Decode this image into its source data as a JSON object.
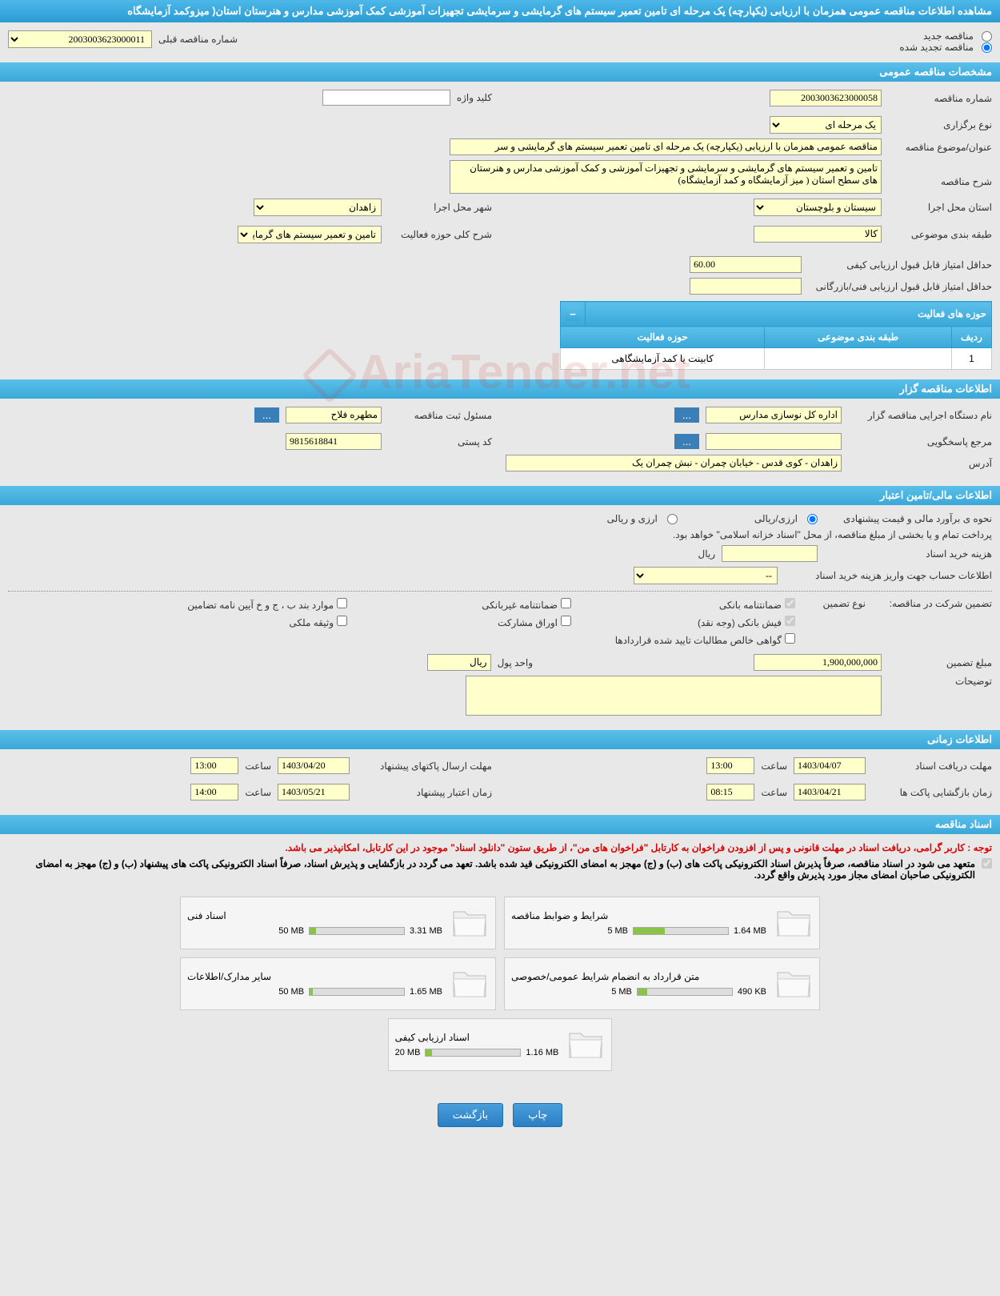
{
  "header": {
    "title": "مشاهده اطلاعات مناقصه عمومی همزمان با ارزیابی (یکپارچه) یک مرحله ای تامین تعمیر سیستم های گرمایشی و سرمایشی تجهیزات آموزشی کمک آموزشی مدارس و هنرستان استان( میزوکمد آزمایشگاه"
  },
  "top": {
    "new_tender": "مناقصه جدید",
    "renewed_tender": "مناقصه تجدید شده",
    "prev_tender_label": "شماره مناقصه قبلی",
    "prev_tender_value": "2003003623000011"
  },
  "section_general": "مشخصات مناقصه عمومی",
  "general": {
    "tender_no_label": "شماره مناقصه",
    "tender_no": "2003003623000058",
    "keyword_label": "کلید واژه",
    "keyword": "",
    "type_label": "نوع برگزاری",
    "type": "یک مرحله ای",
    "subject_label": "عنوان/موضوع مناقصه",
    "subject": "مناقصه عمومی همزمان با ارزیابی (یکپارچه) یک مرحله ای تامین تعمیر سیستم های گرمایشی و سر",
    "desc_label": "شرح مناقصه",
    "desc": "تامین و تعمیر سیستم های گرمایشی و سرمایشی و تجهیزات آموزشی و کمک آموزشی مدارس و هنرستان های سطح استان ( میز آزمایشگاه و کمد آزمایشگاه)",
    "province_label": "استان محل اجرا",
    "province": "سیستان و بلوچستان",
    "city_label": "شهر محل اجرا",
    "city": "زاهدان",
    "category_label": "طبقه بندی موضوعی",
    "category": "کالا",
    "activity_desc_label": "شرح کلی حوزه فعالیت",
    "activity_desc": "تامین و تعمیر سیستم های گرمایشی و",
    "min_quality_label": "حداقل امتیاز قابل قبول ارزیابی کیفی",
    "min_quality": "60.00",
    "min_tech_label": "حداقل امتیاز قابل قبول ارزیابی فنی/بازرگانی",
    "min_tech": ""
  },
  "activity_table": {
    "title": "حوزه های فعالیت",
    "col_row": "ردیف",
    "col_category": "طبقه بندی موضوعی",
    "col_activity": "حوزه فعالیت",
    "rows": [
      {
        "n": "1",
        "category": "",
        "activity": "کابینت یا کمد آزمایشگاهی"
      }
    ]
  },
  "section_org": "اطلاعات مناقصه گزار",
  "org": {
    "name_label": "نام دستگاه اجرایی مناقصه گزار",
    "name": "اداره کل نوسازی مدارس",
    "responsible_label": "مسئول ثبت مناقصه",
    "responsible": "مطهره فلاح",
    "contact_label": "مرجع پاسخگویی",
    "contact": "",
    "postal_label": "کد پستی",
    "postal": "9815618841",
    "address_label": "آدرس",
    "address": "زاهدان - کوی قدس - خیابان چمران - نبش چمران یک"
  },
  "section_financial": "اطلاعات مالی/تامین اعتبار",
  "financial": {
    "estimate_label": "نحوه ی برآورد مالی و قیمت پیشنهادی",
    "opt_rial": "ارزی/ریالی",
    "opt_both": "ارزی و ریالی",
    "payment_note": "پرداخت تمام و یا بخشی از مبلغ مناقصه، از محل \"اسناد خزانه اسلامی\" خواهد بود.",
    "purchase_cost_label": "هزینه خرید اسناد",
    "purchase_cost": "",
    "currency": "ریال",
    "account_label": "اطلاعات حساب جهت واریز هزینه خرید اسناد",
    "account": "--",
    "guarantee_label": "تضمین شرکت در مناقصه:",
    "guarantee_type_label": "نوع تضمین",
    "g1": "ضمانتنامه بانکی",
    "g2": "ضمانتنامه غیربانکی",
    "g3": "موارد بند ب ، ج و خ آیین نامه تضامین",
    "g4": "فیش بانکی (وجه نقد)",
    "g5": "اوراق مشارکت",
    "g6": "وثیقه ملکی",
    "g7": "گواهی خالص مطالبات تایید شده قراردادها",
    "amount_label": "مبلغ تضمین",
    "amount": "1,900,000,000",
    "unit_label": "واحد پول",
    "unit": "ریال",
    "notes_label": "توضیحات",
    "notes": ""
  },
  "section_time": "اطلاعات زمانی",
  "time": {
    "receive_label": "مهلت دریافت اسناد",
    "receive_date": "1403/04/07",
    "receive_time_label": "ساعت",
    "receive_time": "13:00",
    "send_label": "مهلت ارسال پاکتهای پیشنهاد",
    "send_date": "1403/04/20",
    "send_time_label": "ساعت",
    "send_time": "13:00",
    "open_label": "زمان بازگشایی پاکت ها",
    "open_date": "1403/04/21",
    "open_time_label": "ساعت",
    "open_time": "08:15",
    "validity_label": "زمان اعتبار پیشنهاد",
    "validity_date": "1403/05/21",
    "validity_time_label": "ساعت",
    "validity_time": "14:00"
  },
  "section_docs": "اسناد مناقصه",
  "docs_note1_prefix": "توجه : ",
  "docs_note1": "کاربر گرامی، دریافت اسناد در مهلت قانونی و پس از افزودن فراخوان به کارتابل \"فراخوان های من\"، از طریق ستون \"دانلود اسناد\" موجود در این کارتابل، امکانپذیر می باشد.",
  "docs_note2": "متعهد می شود در اسناد مناقصه، صرفاً پذیرش اسناد الکترونیکی پاکت های (ب) و (ج) مهجز به امضای الکترونیکی قید شده باشد. تعهد می گردد در بازگشایی و پذیرش اسناد، صرفاً اسناد الکترونیکی پاکت های پیشنهاد (ب) و (ج) مهجز به امضای الکترونیکی صاحبان امضای مجاز مورد پذیرش واقع گردد.",
  "documents": [
    {
      "title": "شرایط و ضوابط مناقصه",
      "used": "1.64 MB",
      "total": "5 MB",
      "pct": 33
    },
    {
      "title": "اسناد فنی",
      "used": "3.31 MB",
      "total": "50 MB",
      "pct": 7
    },
    {
      "title": "متن قرارداد به انضمام شرایط عمومی/خصوصی",
      "used": "490 KB",
      "total": "5 MB",
      "pct": 10
    },
    {
      "title": "سایر مدارک/اطلاعات",
      "used": "1.65 MB",
      "total": "50 MB",
      "pct": 3
    },
    {
      "title": "اسناد ارزیابی کیفی",
      "used": "1.16 MB",
      "total": "20 MB",
      "pct": 6
    }
  ],
  "buttons": {
    "print": "چاپ",
    "back": "بازگشت"
  },
  "watermark": "AriaTender.net"
}
